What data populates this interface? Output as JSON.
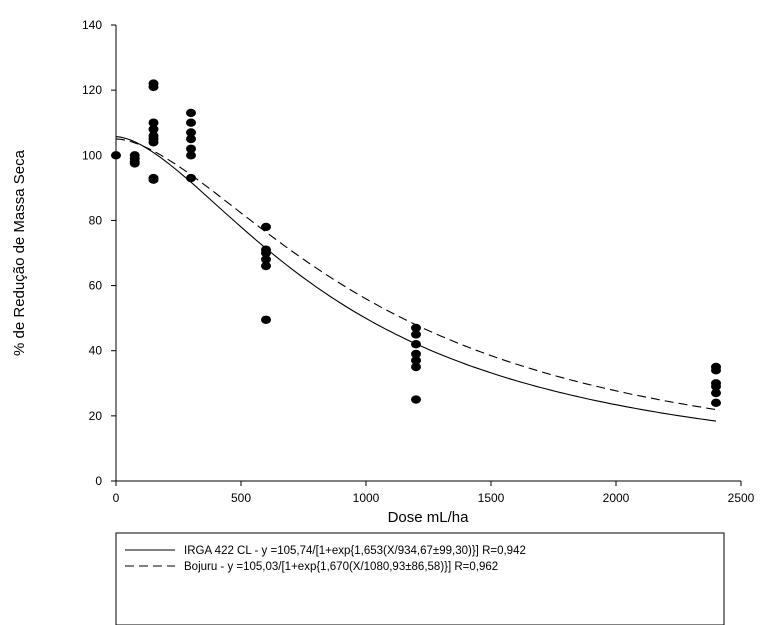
{
  "chart_data": {
    "type": "scatter",
    "xlabel": "Dose mL/ha",
    "ylabel": "% de Redução de Massa Seca",
    "xlim": [
      0,
      2500
    ],
    "ylim": [
      0,
      140
    ],
    "x_ticks": [
      0,
      500,
      1000,
      1500,
      2000,
      2500
    ],
    "y_ticks": [
      0,
      20,
      40,
      60,
      80,
      100,
      120,
      140
    ],
    "grid": false,
    "legend_position": "bottom",
    "points": [
      {
        "x": 0,
        "y": 100
      },
      {
        "x": 75,
        "y": 100
      },
      {
        "x": 75,
        "y": 99
      },
      {
        "x": 75,
        "y": 98
      },
      {
        "x": 75,
        "y": 97.5
      },
      {
        "x": 150,
        "y": 122
      },
      {
        "x": 150,
        "y": 121
      },
      {
        "x": 150,
        "y": 110
      },
      {
        "x": 150,
        "y": 108
      },
      {
        "x": 150,
        "y": 106
      },
      {
        "x": 150,
        "y": 105
      },
      {
        "x": 150,
        "y": 104
      },
      {
        "x": 150,
        "y": 93
      },
      {
        "x": 150,
        "y": 92.5
      },
      {
        "x": 300,
        "y": 113
      },
      {
        "x": 300,
        "y": 110
      },
      {
        "x": 300,
        "y": 107
      },
      {
        "x": 300,
        "y": 105
      },
      {
        "x": 300,
        "y": 102
      },
      {
        "x": 300,
        "y": 100
      },
      {
        "x": 300,
        "y": 93
      },
      {
        "x": 600,
        "y": 78
      },
      {
        "x": 600,
        "y": 71
      },
      {
        "x": 600,
        "y": 70
      },
      {
        "x": 600,
        "y": 68
      },
      {
        "x": 600,
        "y": 66
      },
      {
        "x": 600,
        "y": 49.5
      },
      {
        "x": 1200,
        "y": 47
      },
      {
        "x": 1200,
        "y": 45
      },
      {
        "x": 1200,
        "y": 42
      },
      {
        "x": 1200,
        "y": 39
      },
      {
        "x": 1200,
        "y": 37
      },
      {
        "x": 1200,
        "y": 35
      },
      {
        "x": 1200,
        "y": 25
      },
      {
        "x": 2400,
        "y": 35
      },
      {
        "x": 2400,
        "y": 34
      },
      {
        "x": 2400,
        "y": 30
      },
      {
        "x": 2400,
        "y": 29
      },
      {
        "x": 2400,
        "y": 27
      },
      {
        "x": 2400,
        "y": 24
      }
    ],
    "series": [
      {
        "name": "IRGA 422 CL - y =105,74/[1+exp{1,653(X/934,67±99,30)}] R=0,942",
        "type": "line",
        "style": "solid",
        "a": 105.74,
        "b": 1.653,
        "x0": 934.67,
        "x_range": [
          0,
          2400
        ]
      },
      {
        "name": "Bojuru - y =105,03/[1+exp{1,670(X/1080,93±86,58)}] R=0,962",
        "type": "line",
        "style": "dashed",
        "a": 105.03,
        "b": 1.67,
        "x0": 1080.93,
        "x_range": [
          0,
          2400
        ]
      }
    ]
  }
}
